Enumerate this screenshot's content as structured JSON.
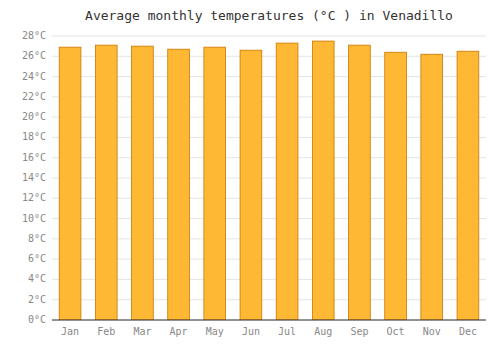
{
  "chart_data": {
    "type": "bar",
    "title": "Average monthly temperatures (°C ) in Venadillo",
    "categories": [
      "Jan",
      "Feb",
      "Mar",
      "Apr",
      "May",
      "Jun",
      "Jul",
      "Aug",
      "Sep",
      "Oct",
      "Nov",
      "Dec"
    ],
    "values": [
      26.9,
      27.1,
      27.0,
      26.7,
      26.9,
      26.6,
      27.3,
      27.5,
      27.1,
      26.4,
      26.2,
      26.5
    ],
    "color": "#FFB833",
    "ylim": [
      0,
      28
    ],
    "yticks": [
      {
        "value": 0,
        "label": "0°C"
      },
      {
        "value": 2,
        "label": "2°C"
      },
      {
        "value": 4,
        "label": "4°C"
      },
      {
        "value": 6,
        "label": "6°C"
      },
      {
        "value": 8,
        "label": "8°C"
      },
      {
        "value": 10,
        "label": "10°C"
      },
      {
        "value": 12,
        "label": "12°C"
      },
      {
        "value": 14,
        "label": "14°C"
      },
      {
        "value": 16,
        "label": "16°C"
      },
      {
        "value": 18,
        "label": "18°C"
      },
      {
        "value": 20,
        "label": "20°C"
      },
      {
        "value": 22,
        "label": "22°C"
      },
      {
        "value": 24,
        "label": "24°C"
      },
      {
        "value": 26,
        "label": "26°C"
      },
      {
        "value": 28,
        "label": "28°C"
      }
    ],
    "grid": true
  }
}
